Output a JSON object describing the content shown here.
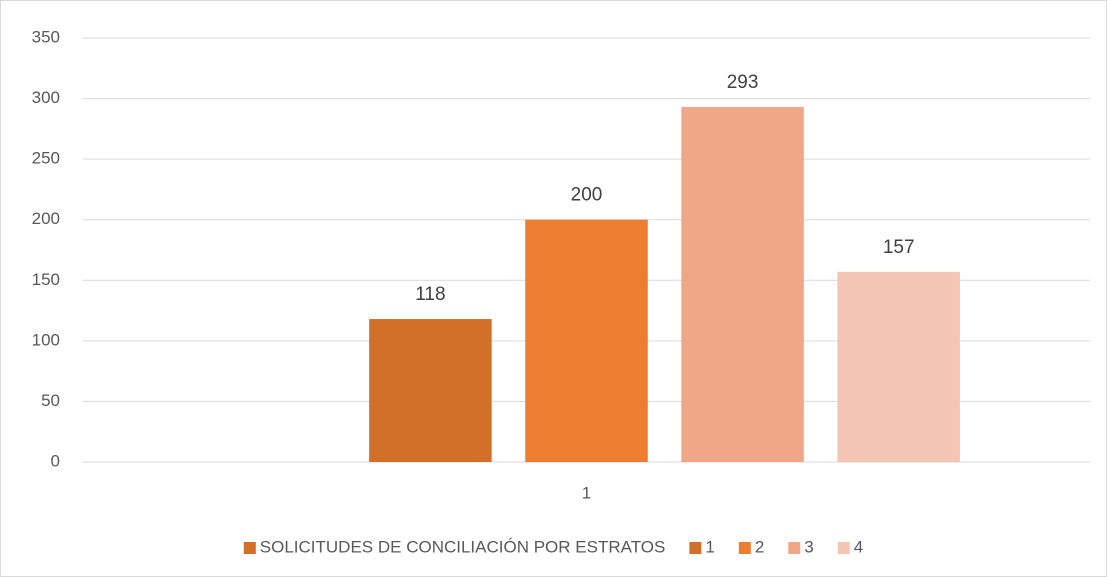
{
  "chart_data": {
    "type": "bar",
    "categories": [
      "1"
    ],
    "series": [
      {
        "name": "SOLICITUDES DE CONCILIACIÓN POR ESTRATOS",
        "color": "#d2702a",
        "values": [
          null
        ]
      },
      {
        "name": "1",
        "color": "#d2702a",
        "values": [
          118
        ]
      },
      {
        "name": "2",
        "color": "#ed7d31",
        "values": [
          200
        ]
      },
      {
        "name": "3",
        "color": "#f0a788",
        "values": [
          293
        ]
      },
      {
        "name": "4",
        "color": "#f4c5b5",
        "values": [
          157
        ]
      }
    ],
    "ylim": [
      0,
      350
    ],
    "yticks": [
      0,
      50,
      100,
      150,
      200,
      250,
      300,
      350
    ],
    "grid": true,
    "legend": "bottom"
  }
}
